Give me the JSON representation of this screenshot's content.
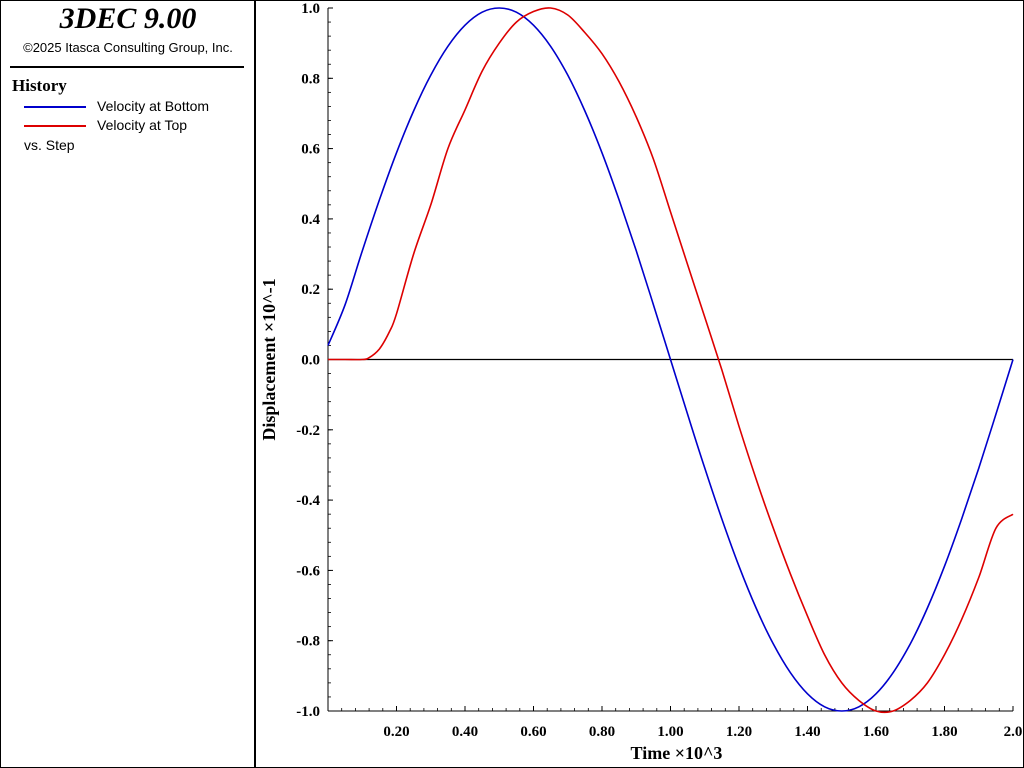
{
  "app": {
    "title": "3DEC 9.00",
    "copyright": "©2025 Itasca Consulting Group, Inc."
  },
  "legend": {
    "title": "History",
    "items": [
      {
        "label": "Velocity at Bottom",
        "color": "#0000cc"
      },
      {
        "label": "Velocity at Top",
        "color": "#dd0000"
      }
    ],
    "vs_label": "vs. Step"
  },
  "chart_data": {
    "type": "line",
    "title": "",
    "xlabel": "Time ×10^3",
    "ylabel": "Displacement ×10^-1",
    "xlim": [
      0.0,
      2.0
    ],
    "ylim": [
      -1.0,
      1.0
    ],
    "x_ticks": [
      "0.20",
      "0.40",
      "0.60",
      "0.80",
      "1.00",
      "1.20",
      "1.40",
      "1.60",
      "1.80",
      "2.0"
    ],
    "y_ticks": [
      "1.0",
      "0.8",
      "0.6",
      "0.4",
      "0.2",
      "0.0",
      "-0.2",
      "-0.4",
      "-0.6",
      "-0.8",
      "-1.0"
    ],
    "grid": false,
    "legend_position": "left-panel",
    "series": [
      {
        "name": "Velocity at Bottom",
        "color": "#0000cc",
        "x": [
          0.0,
          0.05,
          0.1,
          0.15,
          0.2,
          0.25,
          0.3,
          0.35,
          0.4,
          0.45,
          0.5,
          0.55,
          0.6,
          0.65,
          0.7,
          0.75,
          0.8,
          0.85,
          0.9,
          0.95,
          1.0,
          1.05,
          1.1,
          1.15,
          1.2,
          1.25,
          1.3,
          1.35,
          1.4,
          1.45,
          1.5,
          1.55,
          1.6,
          1.65,
          1.7,
          1.75,
          1.8,
          1.85,
          1.9,
          1.95,
          2.0
        ],
        "y": [
          0.04,
          0.156,
          0.309,
          0.454,
          0.588,
          0.707,
          0.809,
          0.891,
          0.951,
          0.988,
          1.0,
          0.988,
          0.951,
          0.891,
          0.809,
          0.707,
          0.588,
          0.454,
          0.309,
          0.156,
          0.0,
          -0.156,
          -0.309,
          -0.454,
          -0.588,
          -0.707,
          -0.809,
          -0.891,
          -0.951,
          -0.988,
          -1.0,
          -0.988,
          -0.951,
          -0.891,
          -0.809,
          -0.707,
          -0.588,
          -0.454,
          -0.309,
          -0.156,
          0.0
        ]
      },
      {
        "name": "Velocity at Top",
        "color": "#dd0000",
        "x": [
          0.0,
          0.05,
          0.1,
          0.12,
          0.15,
          0.18,
          0.2,
          0.25,
          0.3,
          0.35,
          0.4,
          0.45,
          0.5,
          0.55,
          0.6,
          0.65,
          0.7,
          0.75,
          0.8,
          0.85,
          0.9,
          0.95,
          1.0,
          1.05,
          1.1,
          1.15,
          1.2,
          1.25,
          1.3,
          1.35,
          1.4,
          1.45,
          1.5,
          1.55,
          1.6,
          1.65,
          1.7,
          1.75,
          1.8,
          1.85,
          1.9,
          1.95,
          2.0
        ],
        "y": [
          0.0,
          0.0,
          0.0,
          0.005,
          0.03,
          0.08,
          0.13,
          0.3,
          0.44,
          0.6,
          0.71,
          0.82,
          0.9,
          0.96,
          0.99,
          1.0,
          0.98,
          0.93,
          0.87,
          0.79,
          0.69,
          0.57,
          0.42,
          0.27,
          0.12,
          -0.03,
          -0.19,
          -0.34,
          -0.48,
          -0.61,
          -0.73,
          -0.84,
          -0.92,
          -0.97,
          -1.0,
          -1.0,
          -0.97,
          -0.92,
          -0.84,
          -0.74,
          -0.62,
          -0.48,
          -0.44
        ]
      }
    ]
  }
}
